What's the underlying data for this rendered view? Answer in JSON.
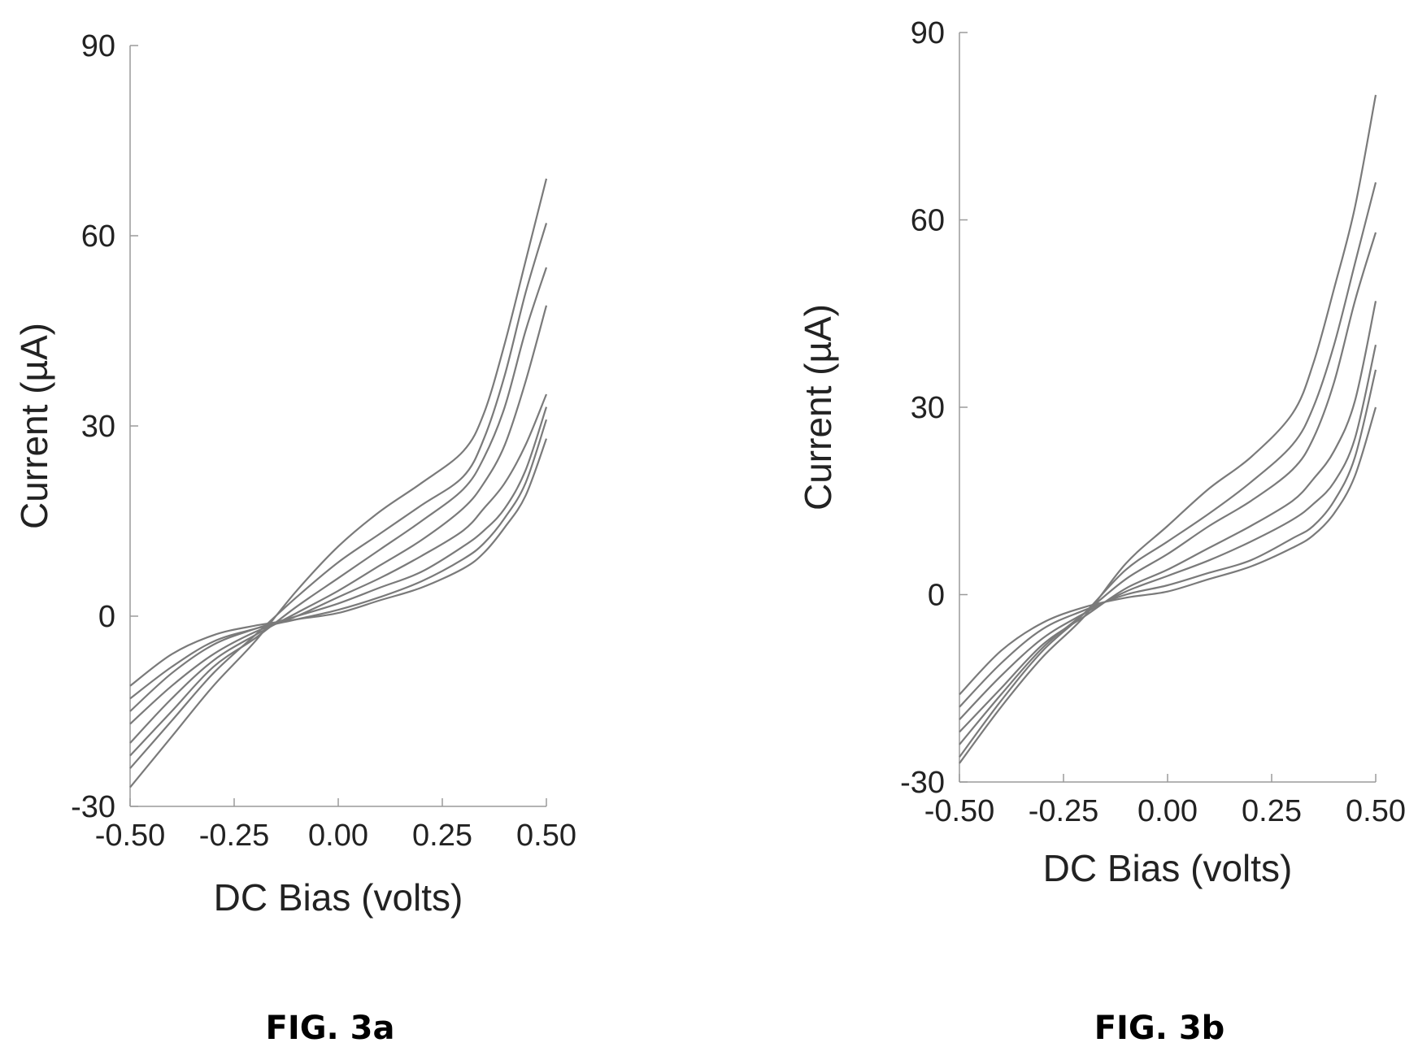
{
  "chart_data": [
    {
      "type": "line",
      "caption": "FIG. 3a",
      "xlabel": "DC Bias (volts)",
      "ylabel": "Current (µA)",
      "xlim": [
        -0.5,
        0.5
      ],
      "ylim": [
        -30,
        90
      ],
      "x_ticks": [
        "-0.50",
        "-0.25",
        "0.00",
        "0.25",
        "0.50"
      ],
      "y_ticks": [
        "-30",
        "0",
        "30",
        "60",
        "90"
      ],
      "grid": false,
      "x": [
        -0.5,
        -0.4,
        -0.3,
        -0.2,
        -0.1,
        0.0,
        0.1,
        0.2,
        0.3,
        0.35,
        0.4,
        0.45,
        0.5
      ],
      "series": [
        {
          "values": [
            -11,
            -6,
            -3,
            -1.5,
            -0.5,
            0.5,
            2.5,
            4.5,
            7.5,
            10,
            14,
            19,
            28
          ]
        },
        {
          "values": [
            -13,
            -8,
            -4,
            -2,
            -0.5,
            1,
            3,
            5.5,
            9,
            11.5,
            15.5,
            21,
            31
          ]
        },
        {
          "values": [
            -15,
            -9,
            -4.5,
            -2,
            0,
            2,
            4.5,
            7,
            11,
            13.5,
            17,
            23,
            33
          ]
        },
        {
          "values": [
            -17,
            -11,
            -6,
            -2.5,
            0,
            3,
            6,
            9.5,
            13.5,
            17,
            21,
            27,
            35
          ]
        },
        {
          "values": [
            -20,
            -13,
            -7,
            -3,
            0.5,
            4,
            8,
            12,
            17,
            21,
            27,
            37,
            49
          ]
        },
        {
          "values": [
            -22,
            -15,
            -8,
            -3.5,
            1.5,
            6,
            10.5,
            15,
            20,
            25,
            33,
            45,
            55
          ]
        },
        {
          "values": [
            -24,
            -16.5,
            -9,
            -3,
            3,
            8.5,
            13,
            17.5,
            22,
            28,
            38,
            51,
            62
          ]
        },
        {
          "values": [
            -27,
            -19,
            -11,
            -4,
            4,
            11,
            16.5,
            21,
            26,
            32,
            43,
            56,
            69
          ]
        }
      ]
    },
    {
      "type": "line",
      "caption": "FIG. 3b",
      "xlabel": "DC Bias (volts)",
      "ylabel": "Current (µA)",
      "xlim": [
        -0.5,
        0.5
      ],
      "ylim": [
        -30,
        90
      ],
      "x_ticks": [
        "-0.50",
        "-0.25",
        "0.00",
        "0.25",
        "0.50"
      ],
      "y_ticks": [
        "-30",
        "0",
        "30",
        "60",
        "90"
      ],
      "grid": false,
      "x": [
        -0.5,
        -0.4,
        -0.3,
        -0.2,
        -0.1,
        0.0,
        0.1,
        0.2,
        0.3,
        0.35,
        0.4,
        0.45,
        0.5
      ],
      "series": [
        {
          "values": [
            -16,
            -9,
            -4.5,
            -2,
            -0.5,
            0.5,
            2.5,
            4.5,
            7.5,
            9.5,
            13,
            19,
            30
          ]
        },
        {
          "values": [
            -18,
            -11,
            -5.5,
            -2.5,
            0,
            1.5,
            3.5,
            5.5,
            9,
            11,
            15,
            22,
            36
          ]
        },
        {
          "values": [
            -20,
            -13,
            -7,
            -3,
            0.5,
            3,
            5.5,
            8.5,
            12,
            14.5,
            18,
            25,
            40
          ]
        },
        {
          "values": [
            -22,
            -15,
            -8,
            -3.5,
            1,
            4,
            7.5,
            11,
            15,
            18.5,
            23,
            31,
            47
          ]
        },
        {
          "values": [
            -24,
            -16,
            -8.5,
            -3,
            2.5,
            6.5,
            11,
            15,
            20,
            25,
            34,
            47,
            58
          ]
        },
        {
          "values": [
            -26,
            -17,
            -9,
            -3,
            4,
            8.5,
            13,
            18,
            24,
            30,
            40,
            53,
            66
          ]
        },
        {
          "values": [
            -27,
            -18,
            -10,
            -3.5,
            5,
            11,
            17,
            22,
            29,
            37,
            49,
            62,
            80
          ]
        }
      ]
    }
  ]
}
